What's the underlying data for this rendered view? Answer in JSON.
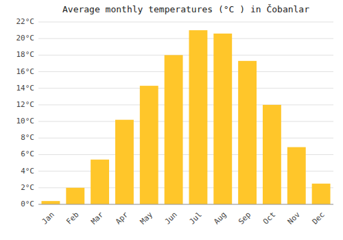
{
  "chart_data": {
    "type": "bar",
    "title": "Average monthly temperatures (°C ) in Čobanlar",
    "categories": [
      "Jan",
      "Feb",
      "Mar",
      "Apr",
      "May",
      "Jun",
      "Jul",
      "Aug",
      "Sep",
      "Oct",
      "Nov",
      "Dec"
    ],
    "values": [
      0.4,
      2.0,
      5.4,
      10.2,
      14.3,
      18.0,
      21.0,
      20.6,
      17.3,
      12.0,
      6.9,
      2.5
    ],
    "color": "#FFC62A",
    "ylim": [
      0,
      22
    ],
    "yticks": [
      {
        "value": 0,
        "label": "0°C"
      },
      {
        "value": 2,
        "label": "2°C"
      },
      {
        "value": 4,
        "label": "4°C"
      },
      {
        "value": 6,
        "label": "6°C"
      },
      {
        "value": 8,
        "label": "8°C"
      },
      {
        "value": 10,
        "label": "10°C"
      },
      {
        "value": 12,
        "label": "12°C"
      },
      {
        "value": 14,
        "label": "14°C"
      },
      {
        "value": 16,
        "label": "16°C"
      },
      {
        "value": 18,
        "label": "18°C"
      },
      {
        "value": 20,
        "label": "20°C"
      },
      {
        "value": 22,
        "label": "22°C"
      }
    ],
    "grid": true
  }
}
